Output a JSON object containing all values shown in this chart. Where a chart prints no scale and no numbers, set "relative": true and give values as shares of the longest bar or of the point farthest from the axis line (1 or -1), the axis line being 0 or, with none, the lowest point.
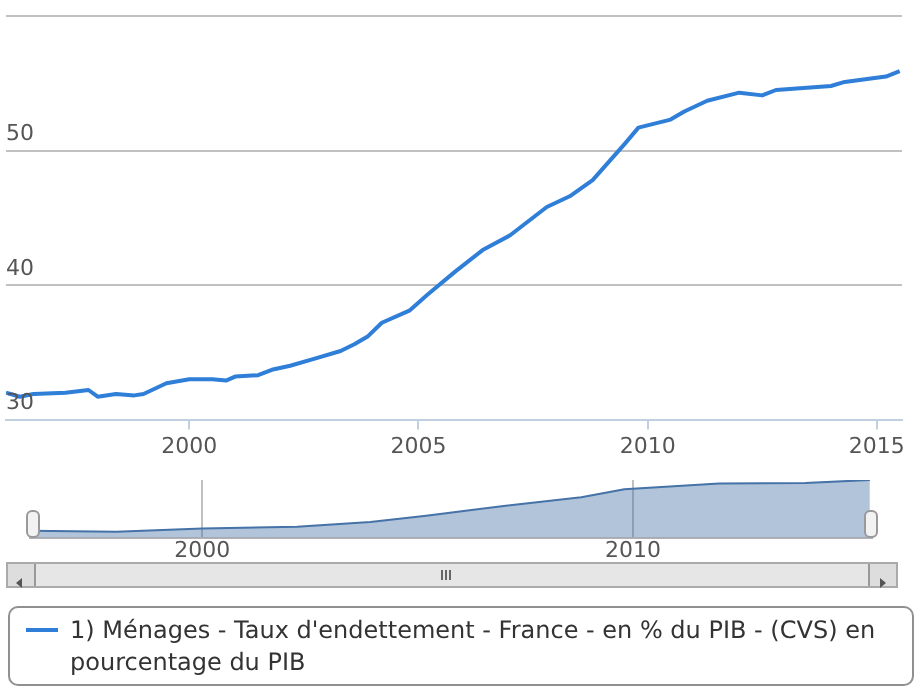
{
  "chart_data": [
    {
      "type": "line",
      "legend": "bottom",
      "grid": "y",
      "xlim": [
        1996,
        2015.55
      ],
      "xticks": [
        2000,
        2005,
        2010,
        2015
      ],
      "ylim": [
        30,
        60
      ],
      "yticks": [
        30,
        40,
        50,
        {
          "value": 60,
          "label": null
        }
      ],
      "x": [
        1996.0,
        1996.3,
        1996.6,
        1997.3,
        1997.8,
        1998.0,
        1998.4,
        1998.8,
        1999.0,
        1999.5,
        2000.0,
        2000.5,
        2000.8,
        2001.0,
        2001.5,
        2001.8,
        2002.2,
        2002.7,
        2003.3,
        2003.6,
        2003.9,
        2004.2,
        2004.8,
        2005.2,
        2005.8,
        2006.4,
        2007.0,
        2007.8,
        2008.3,
        2008.8,
        2009.5,
        2009.8,
        2010.5,
        2010.8,
        2011.3,
        2012.0,
        2012.5,
        2012.8,
        2014.0,
        2014.3,
        2015.2,
        2015.5
      ],
      "series": [
        {
          "name": "1) Ménages - Taux d'endettement - France - en % du PIB - (CVS) en pourcentage du PIB",
          "color": "#2f7ed8",
          "values": [
            32.0,
            31.7,
            31.9,
            32.0,
            32.2,
            31.7,
            31.9,
            31.8,
            31.9,
            32.7,
            33.0,
            33.0,
            32.9,
            33.2,
            33.3,
            33.7,
            34.0,
            34.5,
            35.1,
            35.6,
            36.2,
            37.2,
            38.1,
            39.3,
            41.0,
            42.6,
            43.7,
            45.8,
            46.6,
            47.8,
            50.5,
            51.7,
            52.3,
            52.9,
            53.7,
            54.3,
            54.1,
            54.5,
            54.8,
            55.1,
            55.5,
            55.9
          ]
        }
      ]
    },
    {
      "type": "area",
      "relative": true,
      "grid": "x",
      "tick_labels": "x",
      "xlim": [
        1996,
        2015.55
      ],
      "xticks": [
        2000,
        2010
      ],
      "x": [
        1996.0,
        1998.0,
        2000.0,
        2002.2,
        2003.9,
        2005.2,
        2007.0,
        2008.8,
        2009.8,
        2012.0,
        2014.0,
        2015.5
      ],
      "series": [
        {
          "color": "#4572a7",
          "values": [
            0.12,
            0.1,
            0.16,
            0.19,
            0.27,
            0.38,
            0.55,
            0.7,
            0.84,
            0.94,
            0.95,
            1
          ]
        }
      ]
    }
  ]
}
